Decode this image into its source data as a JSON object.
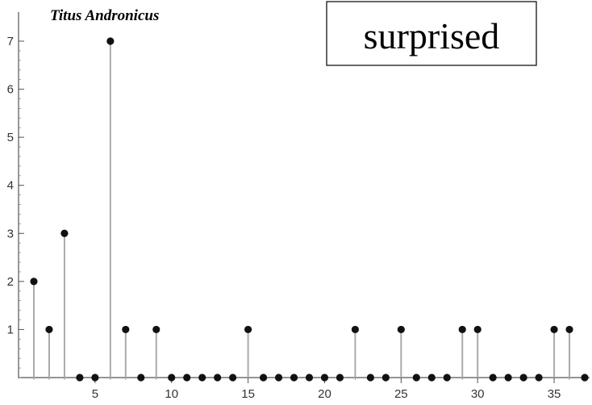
{
  "chart_data": {
    "type": "stem",
    "title": "Titus Andronicus",
    "annotation": "surprised",
    "xlabel": "",
    "ylabel": "",
    "x": [
      1,
      2,
      3,
      4,
      5,
      6,
      7,
      8,
      9,
      10,
      11,
      12,
      13,
      14,
      15,
      16,
      17,
      18,
      19,
      20,
      21,
      22,
      23,
      24,
      25,
      26,
      27,
      28,
      29,
      30,
      31,
      32,
      33,
      34,
      35,
      36,
      37
    ],
    "values": [
      2,
      1,
      3,
      0,
      0,
      7,
      1,
      0,
      1,
      0,
      0,
      0,
      0,
      0,
      1,
      0,
      0,
      0,
      0,
      0,
      0,
      1,
      0,
      0,
      1,
      0,
      0,
      0,
      1,
      1,
      0,
      0,
      0,
      0,
      1,
      1,
      0
    ],
    "xlim": [
      0,
      37
    ],
    "ylim": [
      0,
      7
    ],
    "x_ticks": [
      "5",
      "10",
      "15",
      "20",
      "25",
      "30",
      "35"
    ],
    "y_ticks": [
      "1",
      "2",
      "3",
      "4",
      "5",
      "6",
      "7"
    ],
    "grid": false,
    "colors": {
      "stem": "#aaaaaa",
      "point": "#111111",
      "axis": "#555555"
    }
  }
}
